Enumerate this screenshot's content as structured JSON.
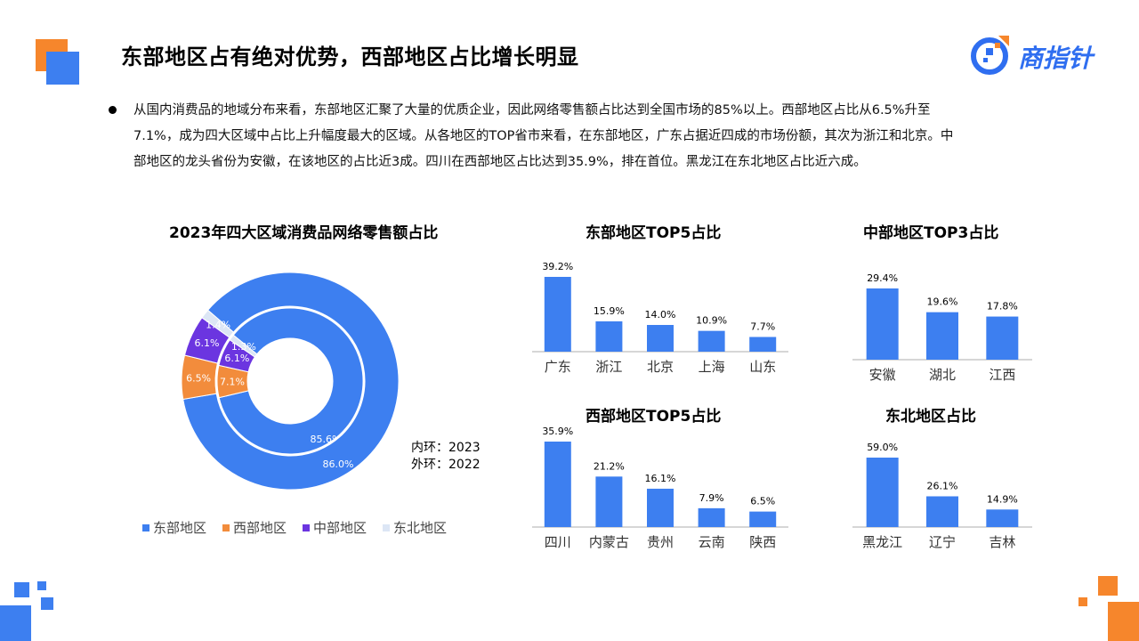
{
  "header": {
    "title": "东部地区占有绝对优势，西部地区占比增长明显",
    "logo_text": "商指针"
  },
  "body": {
    "lines": [
      "从国内消费品的地域分布来看，东部地区汇聚了大量的优质企业，因此网络零售额占比达到全国市场的85%以上。西部地区占比从6.5%升至",
      "7.1%，成为四大区域中占比上升幅度最大的区域。从各地区的TOP省市来看，在东部地区，广东占据近四成的市场份额，其次为浙江和北京。中",
      "部地区的龙头省份为安徽，在该地区的占比近3成。四川在西部地区占比达到35.9%，排在首位。黑龙江在东北地区占比近六成。"
    ]
  },
  "ring_note": {
    "inner": "内环：2023",
    "outer": "外环：2022"
  },
  "colors": {
    "blue": "#3d7ff0",
    "orange": "#f28c3c",
    "purple": "#6b35e0",
    "light": "#dce6f5",
    "accent_orange": "#f6862c"
  },
  "chart_data": [
    {
      "type": "pie",
      "title": "2023年四大区域消费品网络零售额占比",
      "categories": [
        "东部地区",
        "西部地区",
        "中部地区",
        "东北地区"
      ],
      "series": [
        {
          "name": "2023",
          "values": [
            85.6,
            7.1,
            6.1,
            1.3
          ],
          "labels": [
            "85.6%",
            "7.1%",
            "6.1%",
            "1.3%"
          ]
        },
        {
          "name": "2022",
          "values": [
            86.0,
            6.5,
            6.1,
            1.4
          ],
          "labels": [
            "86.0%",
            "6.5%",
            "6.1%",
            "1.4%"
          ]
        }
      ],
      "legend": "bottom"
    },
    {
      "type": "bar",
      "title": "东部地区TOP5占比",
      "categories": [
        "广东",
        "浙江",
        "北京",
        "上海",
        "山东"
      ],
      "values": [
        39.2,
        15.9,
        14.0,
        10.9,
        7.7
      ],
      "labels": [
        "39.2%",
        "15.9%",
        "14.0%",
        "10.9%",
        "7.7%"
      ]
    },
    {
      "type": "bar",
      "title": "中部地区TOP3占比",
      "categories": [
        "安徽",
        "湖北",
        "江西"
      ],
      "values": [
        29.4,
        19.6,
        17.8
      ],
      "labels": [
        "29.4%",
        "19.6%",
        "17.8%"
      ]
    },
    {
      "type": "bar",
      "title": "西部地区TOP5占比",
      "categories": [
        "四川",
        "内蒙古",
        "贵州",
        "云南",
        "陕西"
      ],
      "values": [
        35.9,
        21.2,
        16.1,
        7.9,
        6.5
      ],
      "labels": [
        "35.9%",
        "21.2%",
        "16.1%",
        "7.9%",
        "6.5%"
      ]
    },
    {
      "type": "bar",
      "title": "东北地区占比",
      "categories": [
        "黑龙江",
        "辽宁",
        "吉林"
      ],
      "values": [
        59.0,
        26.1,
        14.9
      ],
      "labels": [
        "59.0%",
        "26.1%",
        "14.9%"
      ]
    }
  ]
}
